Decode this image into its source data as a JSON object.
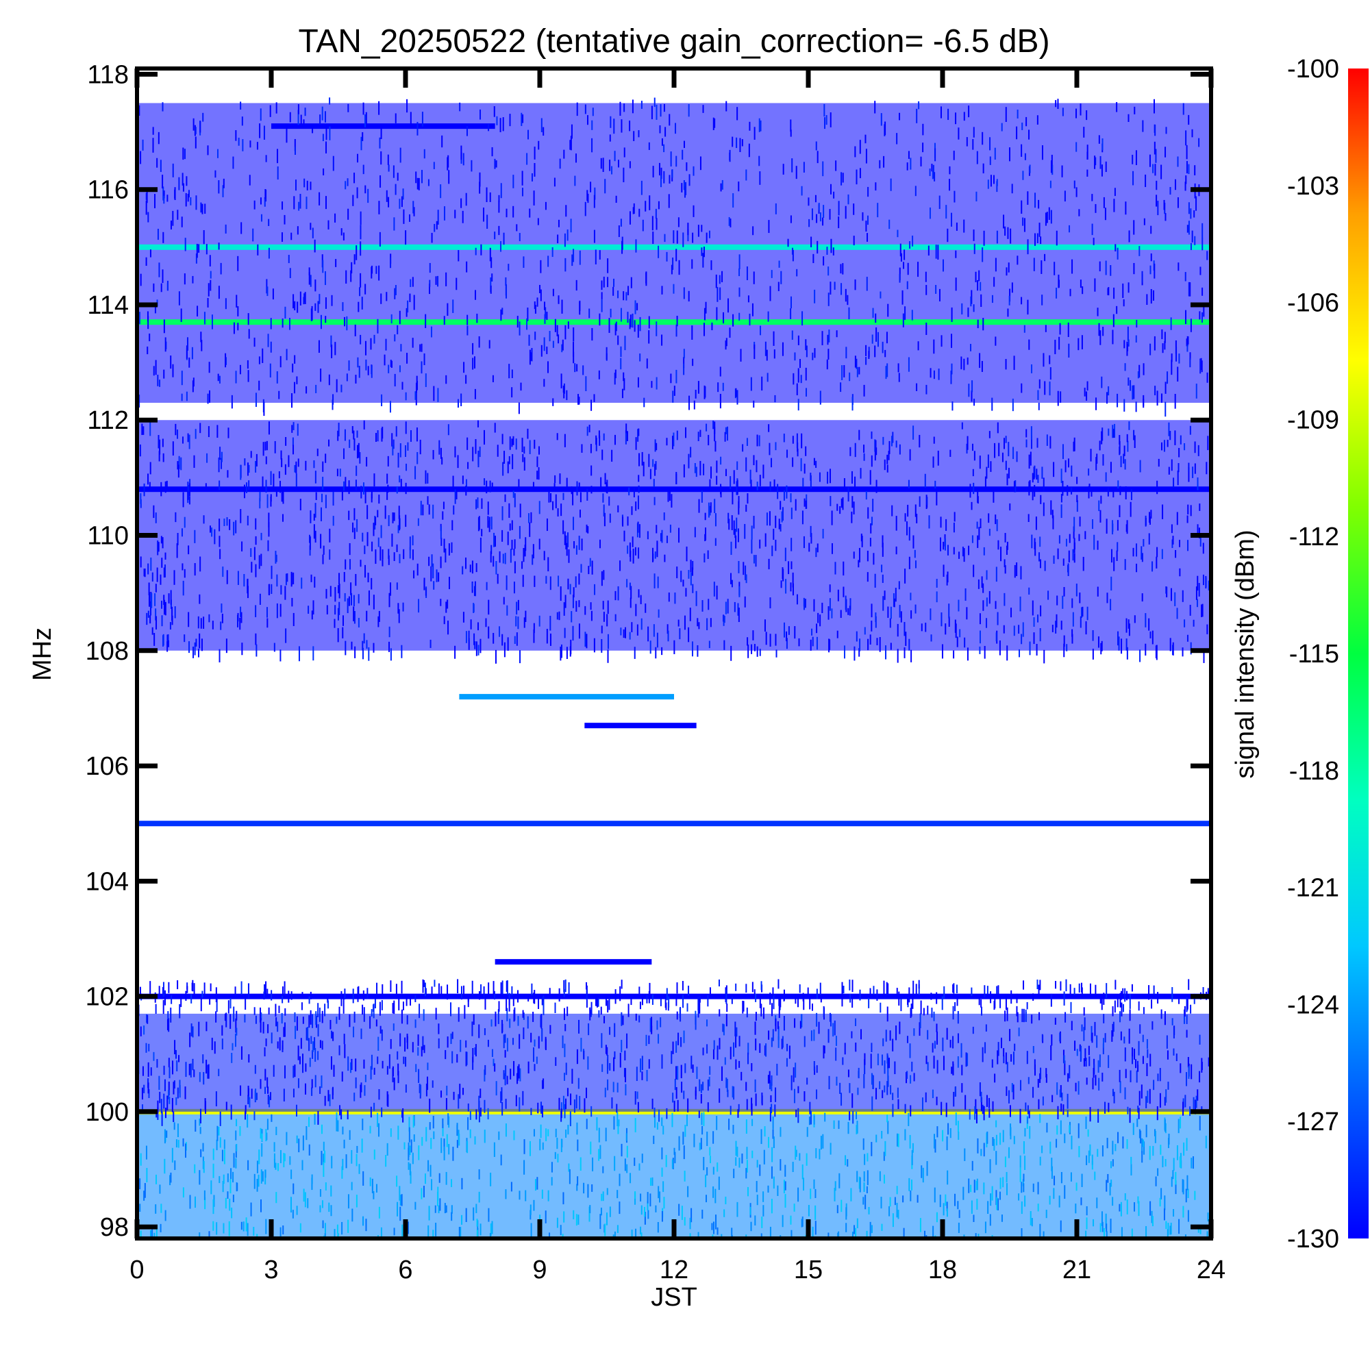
{
  "chart_data": {
    "type": "heatmap",
    "title": "TAN_20250522 (tentative gain_correction= -6.5 dB)",
    "xlabel": "JST",
    "ylabel": "MHz",
    "xlim": [
      0,
      24
    ],
    "ylim": [
      97.8,
      118.1
    ],
    "x_ticks": [
      "0",
      "3",
      "6",
      "9",
      "12",
      "15",
      "18",
      "21",
      "24"
    ],
    "y_ticks": [
      "98",
      "100",
      "102",
      "104",
      "106",
      "108",
      "110",
      "112",
      "114",
      "116",
      "118"
    ],
    "colorbar": {
      "label": "signal intensity (dBm)",
      "min": -130,
      "max": -100,
      "ticks": [
        "-100",
        "-103",
        "-106",
        "-109",
        "-112",
        "-115",
        "-118",
        "-121",
        "-124",
        "-127",
        "-130"
      ],
      "colormap": [
        "#0000ff",
        "#0060ff",
        "#00c8ff",
        "#00ffc0",
        "#00ff40",
        "#80ff00",
        "#ffff00",
        "#ffa000",
        "#ff0000"
      ]
    },
    "features": [
      {
        "name": "band 97.8-100.0 MHz",
        "freq_range": [
          97.8,
          100.0
        ],
        "time_range": [
          0,
          24
        ],
        "intensity_dBm": -125
      },
      {
        "name": "line 100.0 MHz",
        "freq": 100.0,
        "time_range": [
          0,
          24
        ],
        "intensity_dBm": -108
      },
      {
        "name": "band 100.0-101.7 MHz",
        "freq_range": [
          100.0,
          101.7
        ],
        "time_range": [
          0,
          24
        ],
        "intensity_dBm": -129
      },
      {
        "name": "line 102.0 MHz",
        "freq": 102.0,
        "time_range": [
          0,
          24
        ],
        "intensity_dBm": -130
      },
      {
        "name": "line 105.0 MHz",
        "freq": 105.0,
        "time_range": [
          0,
          24
        ],
        "intensity_dBm": -128
      },
      {
        "name": "segment 107.2 MHz",
        "freq": 107.2,
        "time_range": [
          7.2,
          12.0
        ],
        "intensity_dBm": -124
      },
      {
        "name": "segment 106.7 MHz",
        "freq": 106.7,
        "time_range": [
          10.0,
          12.5
        ],
        "intensity_dBm": -130
      },
      {
        "name": "segment 102.6 MHz",
        "freq": 102.6,
        "time_range": [
          8.0,
          11.5
        ],
        "intensity_dBm": -130
      },
      {
        "name": "band 108.0-112.0 MHz",
        "freq_range": [
          108.0,
          112.0
        ],
        "time_range": [
          0,
          24
        ],
        "intensity_dBm": -130
      },
      {
        "name": "line 110.8 MHz",
        "freq": 110.8,
        "time_range": [
          0,
          24
        ],
        "intensity_dBm": -130
      },
      {
        "name": "band 112.3-117.5 MHz",
        "freq_range": [
          112.3,
          117.5
        ],
        "time_range": [
          0,
          24
        ],
        "intensity_dBm": -130
      },
      {
        "name": "line 113.7 MHz",
        "freq": 113.7,
        "time_range": [
          0,
          24
        ],
        "intensity_dBm": -116
      },
      {
        "name": "line 115.0 MHz",
        "freq": 115.0,
        "time_range": [
          0,
          24
        ],
        "intensity_dBm": -120
      },
      {
        "name": "segment 117.1 MHz",
        "freq": 117.1,
        "time_range": [
          3.0,
          8.0
        ],
        "intensity_dBm": -130
      }
    ]
  }
}
